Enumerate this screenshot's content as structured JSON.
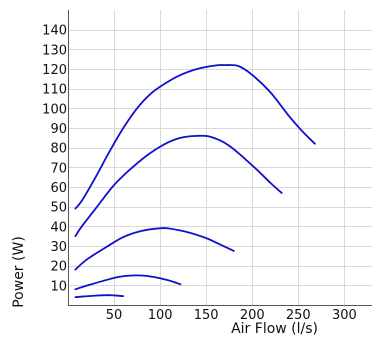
{
  "chart_data": {
    "type": "line",
    "title": "",
    "xlabel": "Air Flow (l/s)",
    "ylabel": "Power (W)",
    "xlim": [
      0,
      330
    ],
    "ylim": [
      0,
      150
    ],
    "x_ticks": [
      50,
      100,
      150,
      200,
      250,
      300
    ],
    "y_ticks": [
      10,
      20,
      30,
      40,
      50,
      60,
      70,
      80,
      90,
      100,
      110,
      120,
      130,
      140
    ],
    "grid": true,
    "legend": "none",
    "series_color": "#1111cc",
    "series": [
      {
        "x": [
          8,
          30,
          45,
          60
        ],
        "y": [
          4,
          4.8,
          5,
          4.5
        ]
      },
      {
        "x": [
          8,
          25,
          40,
          55,
          70,
          85,
          100,
          115,
          122
        ],
        "y": [
          8,
          10.5,
          12.5,
          14.3,
          15,
          14.8,
          13.6,
          11.7,
          10.5
        ]
      },
      {
        "x": [
          8,
          20,
          40,
          60,
          80,
          100,
          110,
          130,
          150,
          165,
          180
        ],
        "y": [
          18,
          23,
          29,
          34.5,
          37.7,
          39,
          38.9,
          37,
          34,
          30.8,
          27.5
        ]
      },
      {
        "x": [
          8,
          15,
          30,
          50,
          70,
          90,
          110,
          125,
          140,
          155,
          175,
          200,
          220,
          232
        ],
        "y": [
          35,
          40,
          49,
          61,
          70,
          77.5,
          83,
          85.3,
          86,
          85.5,
          81,
          71,
          62,
          57
        ]
      },
      {
        "x": [
          8,
          15,
          30,
          45,
          60,
          75,
          90,
          105,
          120,
          140,
          160,
          170,
          185,
          200,
          220,
          240,
          255,
          268
        ],
        "y": [
          49,
          53,
          65,
          78,
          90,
          100,
          107.5,
          112.5,
          116.5,
          120,
          121.8,
          122,
          121.5,
          117,
          108,
          96,
          88,
          82
        ]
      }
    ]
  }
}
